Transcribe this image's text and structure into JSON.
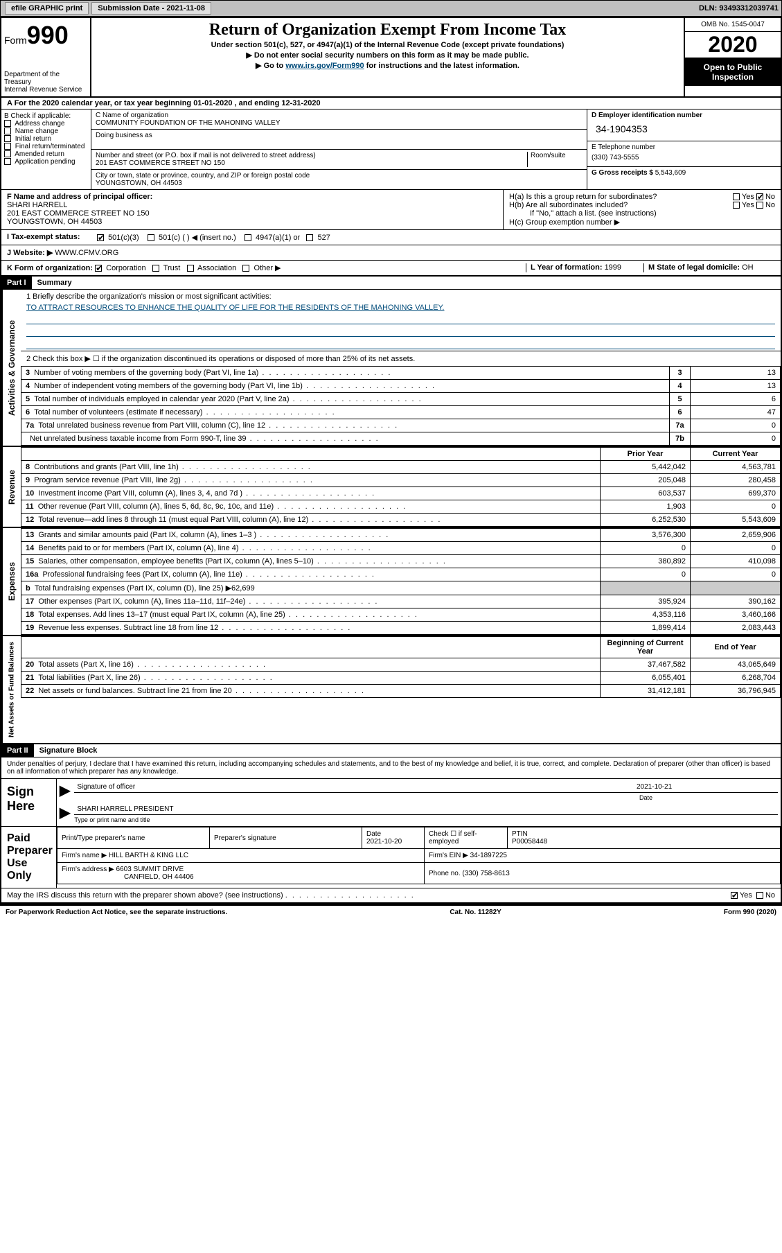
{
  "topbar": {
    "efile": "efile  GRAPHIC  print",
    "sub_label": "Submission Date - 2021-11-08",
    "dln": "DLN: 93493312039741"
  },
  "header": {
    "form_word": "Form",
    "form_num": "990",
    "dept": "Department of the Treasury\nInternal Revenue Service",
    "title": "Return of Organization Exempt From Income Tax",
    "sub1": "Under section 501(c), 527, or 4947(a)(1) of the Internal Revenue Code (except private foundations)",
    "sub2": "▶ Do not enter social security numbers on this form as it may be made public.",
    "sub3_pre": "▶ Go to ",
    "sub3_link": "www.irs.gov/Form990",
    "sub3_post": " for instructions and the latest information.",
    "omb": "OMB No. 1545-0047",
    "year": "2020",
    "open": "Open to Public Inspection"
  },
  "row_a": "A  For the 2020 calendar year, or tax year beginning 01-01-2020    , and ending 12-31-2020",
  "box_b": {
    "hdr": "B Check if applicable:",
    "items": [
      "Address change",
      "Name change",
      "Initial return",
      "Final return/terminated",
      "Amended return",
      "Application pending"
    ]
  },
  "box_c": {
    "label": "C Name of organization",
    "name": "COMMUNITY FOUNDATION OF THE MAHONING VALLEY",
    "dba_label": "Doing business as",
    "addr_label": "Number and street (or P.O. box if mail is not delivered to street address)",
    "room_label": "Room/suite",
    "addr": "201 EAST COMMERCE STREET NO 150",
    "city_label": "City or town, state or province, country, and ZIP or foreign postal code",
    "city": "YOUNGSTOWN, OH  44503"
  },
  "box_d": {
    "label": "D Employer identification number",
    "val": "34-1904353"
  },
  "box_e": {
    "label": "E Telephone number",
    "val": "(330) 743-5555"
  },
  "box_g": {
    "label": "G Gross receipts $ ",
    "val": "5,543,609"
  },
  "box_f": {
    "label": "F  Name and address of principal officer:",
    "name": "SHARI HARRELL",
    "addr": "201 EAST COMMERCE STREET NO 150\nYOUNGSTOWN, OH  44503"
  },
  "box_h": {
    "a": "H(a)  Is this a group return for subordinates?",
    "b": "H(b)  Are all subordinates included?",
    "note": "If \"No,\" attach a list. (see instructions)",
    "c": "H(c)  Group exemption number ▶"
  },
  "row_i": {
    "label": "I  Tax-exempt status:",
    "opts": [
      "501(c)(3)",
      "501(c) (  ) ◀ (insert no.)",
      "4947(a)(1) or",
      "527"
    ]
  },
  "row_j": {
    "label": "J  Website: ▶ ",
    "val": "WWW.CFMV.ORG"
  },
  "row_k": {
    "label": "K Form of organization:",
    "opts": [
      "Corporation",
      "Trust",
      "Association",
      "Other ▶"
    ],
    "l": "L Year of formation: ",
    "l_val": "1999",
    "m": "M State of legal domicile: ",
    "m_val": "OH"
  },
  "part1": {
    "hdr": "Part I",
    "title": "Summary",
    "q1": "1  Briefly describe the organization's mission or most significant activities:",
    "mission": "TO ATTRACT RESOURCES TO ENHANCE THE QUALITY OF LIFE FOR THE RESIDENTS OF THE MAHONING VALLEY.",
    "q2": "2  Check this box ▶ ☐  if the organization discontinued its operations or disposed of more than 25% of its net assets.",
    "activities_label": "Activities & Governance",
    "revenue_label": "Revenue",
    "expenses_label": "Expenses",
    "net_label": "Net Assets or Fund Balances",
    "rows_ag": [
      {
        "n": "3",
        "label": "Number of voting members of the governing body (Part VI, line 1a)",
        "box": "3",
        "val": "13"
      },
      {
        "n": "4",
        "label": "Number of independent voting members of the governing body (Part VI, line 1b)",
        "box": "4",
        "val": "13"
      },
      {
        "n": "5",
        "label": "Total number of individuals employed in calendar year 2020 (Part V, line 2a)",
        "box": "5",
        "val": "6"
      },
      {
        "n": "6",
        "label": "Total number of volunteers (estimate if necessary)",
        "box": "6",
        "val": "47"
      },
      {
        "n": "7a",
        "label": "Total unrelated business revenue from Part VIII, column (C), line 12",
        "box": "7a",
        "val": "0"
      },
      {
        "n": "",
        "label": "Net unrelated business taxable income from Form 990-T, line 39",
        "box": "7b",
        "val": "0"
      }
    ],
    "col_hdr_prior": "Prior Year",
    "col_hdr_curr": "Current Year",
    "rows_rev": [
      {
        "n": "8",
        "label": "Contributions and grants (Part VIII, line 1h)",
        "p": "5,442,042",
        "c": "4,563,781"
      },
      {
        "n": "9",
        "label": "Program service revenue (Part VIII, line 2g)",
        "p": "205,048",
        "c": "280,458"
      },
      {
        "n": "10",
        "label": "Investment income (Part VIII, column (A), lines 3, 4, and 7d )",
        "p": "603,537",
        "c": "699,370"
      },
      {
        "n": "11",
        "label": "Other revenue (Part VIII, column (A), lines 5, 6d, 8c, 9c, 10c, and 11e)",
        "p": "1,903",
        "c": "0"
      },
      {
        "n": "12",
        "label": "Total revenue—add lines 8 through 11 (must equal Part VIII, column (A), line 12)",
        "p": "6,252,530",
        "c": "5,543,609"
      }
    ],
    "rows_exp": [
      {
        "n": "13",
        "label": "Grants and similar amounts paid (Part IX, column (A), lines 1–3 )",
        "p": "3,576,300",
        "c": "2,659,906"
      },
      {
        "n": "14",
        "label": "Benefits paid to or for members (Part IX, column (A), line 4)",
        "p": "0",
        "c": "0"
      },
      {
        "n": "15",
        "label": "Salaries, other compensation, employee benefits (Part IX, column (A), lines 5–10)",
        "p": "380,892",
        "c": "410,098"
      },
      {
        "n": "16a",
        "label": "Professional fundraising fees (Part IX, column (A), line 11e)",
        "p": "0",
        "c": "0"
      },
      {
        "n": "b",
        "label": "Total fundraising expenses (Part IX, column (D), line 25) ▶62,699",
        "p": "",
        "c": "",
        "grey": true
      },
      {
        "n": "17",
        "label": "Other expenses (Part IX, column (A), lines 11a–11d, 11f–24e)",
        "p": "395,924",
        "c": "390,162"
      },
      {
        "n": "18",
        "label": "Total expenses. Add lines 13–17 (must equal Part IX, column (A), line 25)",
        "p": "4,353,116",
        "c": "3,460,166"
      },
      {
        "n": "19",
        "label": "Revenue less expenses. Subtract line 18 from line 12",
        "p": "1,899,414",
        "c": "2,083,443"
      }
    ],
    "col_hdr_begin": "Beginning of Current Year",
    "col_hdr_end": "End of Year",
    "rows_net": [
      {
        "n": "20",
        "label": "Total assets (Part X, line 16)",
        "p": "37,467,582",
        "c": "43,065,649"
      },
      {
        "n": "21",
        "label": "Total liabilities (Part X, line 26)",
        "p": "6,055,401",
        "c": "6,268,704"
      },
      {
        "n": "22",
        "label": "Net assets or fund balances. Subtract line 21 from line 20",
        "p": "31,412,181",
        "c": "36,796,945"
      }
    ]
  },
  "part2": {
    "hdr": "Part II",
    "title": "Signature Block",
    "perjury": "Under penalties of perjury, I declare that I have examined this return, including accompanying schedules and statements, and to the best of my knowledge and belief, it is true, correct, and complete. Declaration of preparer (other than officer) is based on all information of which preparer has any knowledge.",
    "sign_here": "Sign Here",
    "sig_officer": "Signature of officer",
    "sig_date": "2021-10-21",
    "date_label": "Date",
    "officer_name": "SHARI HARRELL  PRESIDENT",
    "type_label": "Type or print name and title",
    "paid": "Paid Preparer Use Only",
    "prep_name_label": "Print/Type preparer's name",
    "prep_sig_label": "Preparer's signature",
    "prep_date_label": "Date",
    "prep_date": "2021-10-20",
    "check_self": "Check ☐ if self-employed",
    "ptin_label": "PTIN",
    "ptin": "P00058448",
    "firm_name_label": "Firm's name    ▶ ",
    "firm_name": "HILL BARTH & KING LLC",
    "firm_ein_label": "Firm's EIN ▶ ",
    "firm_ein": "34-1897225",
    "firm_addr_label": "Firm's address ▶ ",
    "firm_addr": "6603 SUMMIT DRIVE",
    "firm_city": "CANFIELD, OH  44406",
    "phone_label": "Phone no. ",
    "phone": "(330) 758-8613",
    "discuss": "May the IRS discuss this return with the preparer shown above? (see instructions)"
  },
  "footer": {
    "left": "For Paperwork Reduction Act Notice, see the separate instructions.",
    "mid": "Cat. No. 11282Y",
    "right": "Form 990 (2020)"
  }
}
